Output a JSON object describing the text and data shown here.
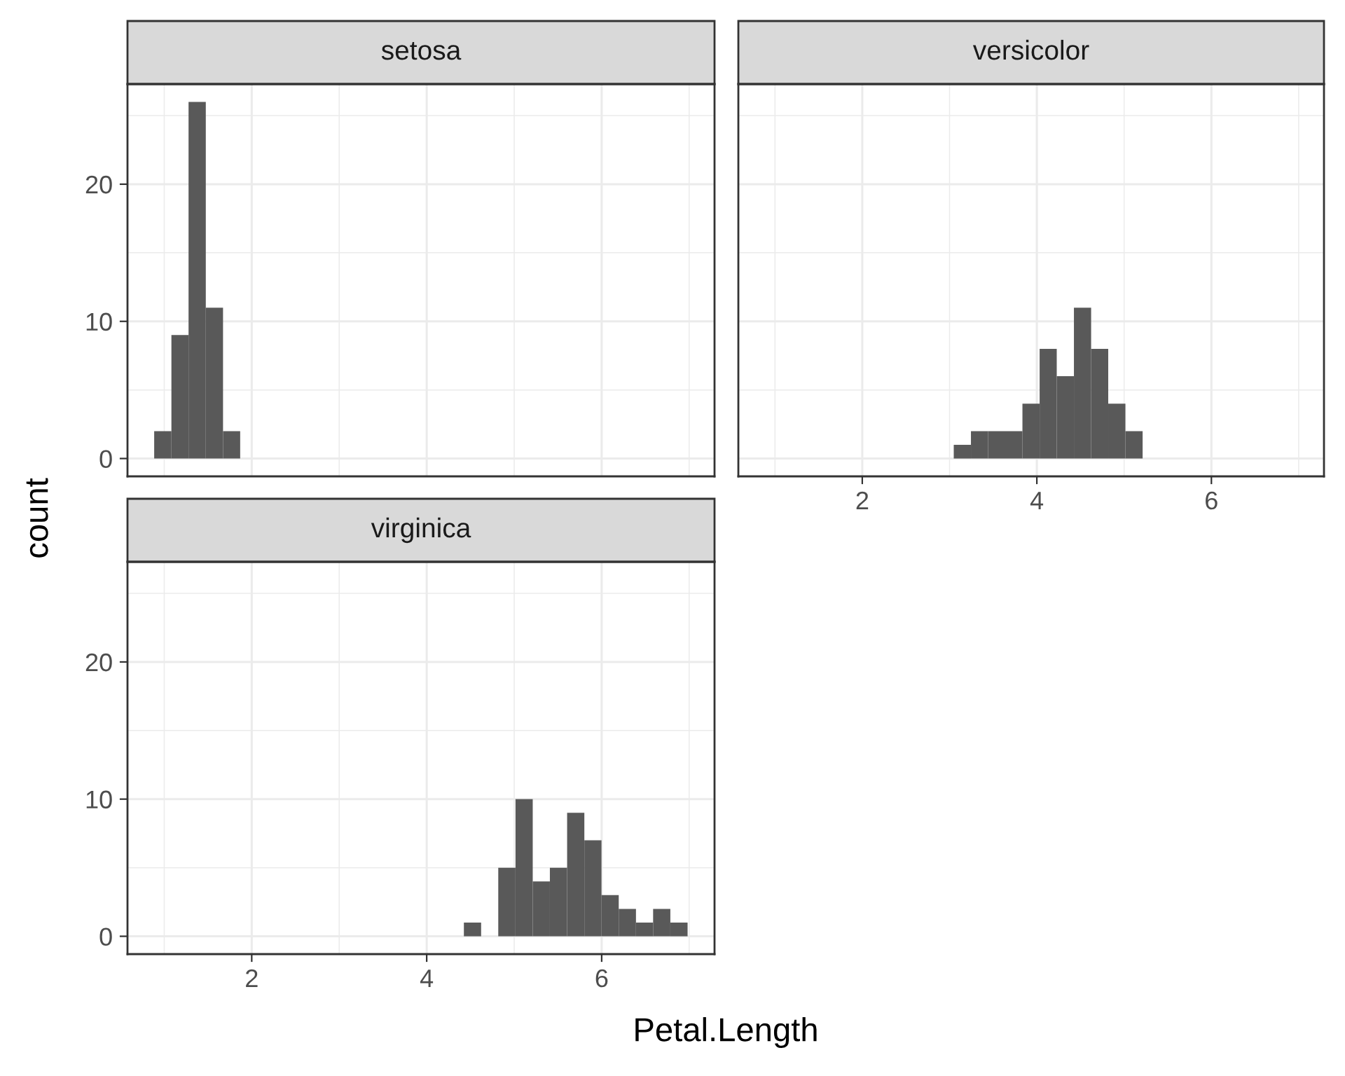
{
  "chart_data": [
    {
      "type": "histogram",
      "title": "setosa",
      "color": "#595959",
      "bins": [
        0.885,
        1.082,
        1.278,
        1.475,
        1.672,
        1.868,
        2.065,
        2.262,
        2.458,
        2.655,
        2.852,
        3.048,
        3.245,
        3.442,
        3.638,
        3.835,
        4.032,
        4.228,
        4.425,
        4.622,
        4.818,
        5.015,
        5.212,
        5.408,
        5.605,
        5.802,
        5.998,
        6.195,
        6.392,
        6.588,
        6.785,
        6.982
      ],
      "values": [
        2,
        9,
        26,
        11,
        2,
        0,
        0,
        0,
        0,
        0,
        0,
        0,
        0,
        0,
        0,
        0,
        0,
        0,
        0,
        0,
        0,
        0,
        0,
        0,
        0,
        0,
        0,
        0,
        0,
        0,
        0
      ],
      "xlim": [
        0.58,
        7.29
      ],
      "ylim": [
        -1.3,
        27.3
      ],
      "xticks": [
        2,
        4,
        6
      ],
      "yticks": [
        0,
        10,
        20
      ],
      "grid": true,
      "tick_labels": "y"
    },
    {
      "type": "histogram",
      "title": "versicolor",
      "color": "#595959",
      "bins": [
        0.885,
        1.082,
        1.278,
        1.475,
        1.672,
        1.868,
        2.065,
        2.262,
        2.458,
        2.655,
        2.852,
        3.048,
        3.245,
        3.442,
        3.638,
        3.835,
        4.032,
        4.228,
        4.425,
        4.622,
        4.818,
        5.015,
        5.212,
        5.408,
        5.605,
        5.802,
        5.998,
        6.195,
        6.392,
        6.588,
        6.785,
        6.982
      ],
      "values": [
        0,
        0,
        0,
        0,
        0,
        0,
        0,
        0,
        0,
        0,
        0,
        1,
        2,
        2,
        2,
        4,
        8,
        6,
        11,
        8,
        4,
        2,
        0,
        0,
        0,
        0,
        0,
        0,
        0,
        0,
        0
      ],
      "xlim": [
        0.58,
        7.29
      ],
      "ylim": [
        -1.3,
        27.3
      ],
      "xticks": [
        2,
        4,
        6
      ],
      "yticks": [
        0,
        10,
        20
      ],
      "grid": true,
      "tick_labels": "x"
    },
    {
      "type": "histogram",
      "title": "virginica",
      "color": "#595959",
      "xlabel": "Petal.Length",
      "ylabel": "count",
      "bins": [
        0.885,
        1.082,
        1.278,
        1.475,
        1.672,
        1.868,
        2.065,
        2.262,
        2.458,
        2.655,
        2.852,
        3.048,
        3.245,
        3.442,
        3.638,
        3.835,
        4.032,
        4.228,
        4.425,
        4.622,
        4.818,
        5.015,
        5.212,
        5.408,
        5.605,
        5.802,
        5.998,
        6.195,
        6.392,
        6.588,
        6.785,
        6.982
      ],
      "values": [
        0,
        0,
        0,
        0,
        0,
        0,
        0,
        0,
        0,
        0,
        0,
        0,
        0,
        0,
        0,
        0,
        0,
        0,
        1,
        0,
        5,
        10,
        4,
        5,
        9,
        7,
        3,
        2,
        1,
        2,
        1
      ],
      "xlim": [
        0.58,
        7.29
      ],
      "ylim": [
        -1.3,
        27.3
      ],
      "xticks": [
        2,
        4,
        6
      ],
      "yticks": [
        0,
        10,
        20
      ],
      "grid": true
    }
  ]
}
